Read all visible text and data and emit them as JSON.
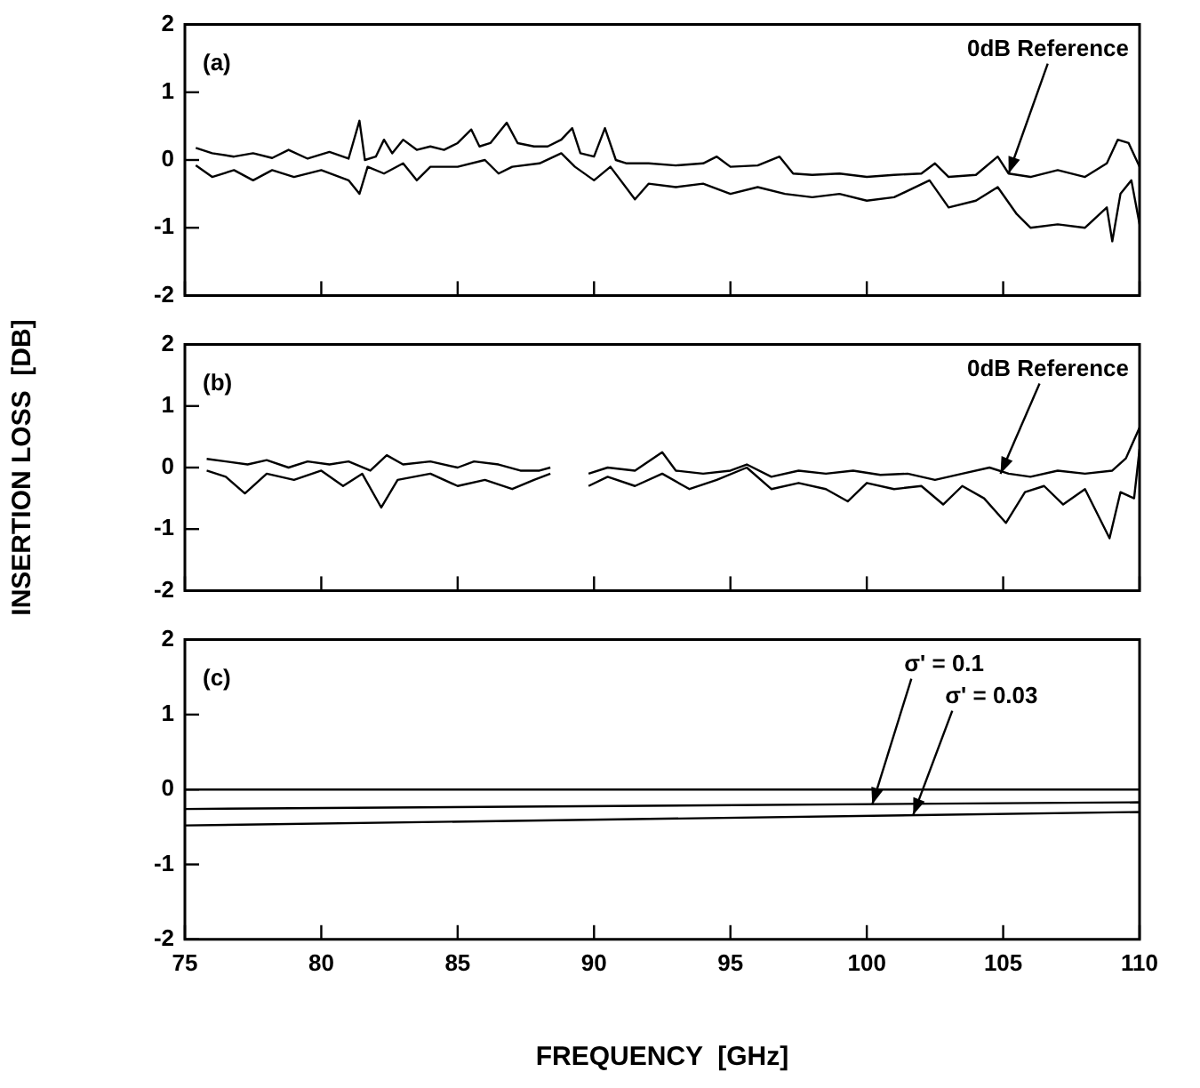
{
  "chart_data": [
    {
      "type": "line",
      "xlim": [
        75,
        110
      ],
      "xticks": [
        75,
        80,
        85,
        90,
        95,
        100,
        105,
        110
      ],
      "ylim": [
        -2,
        2
      ],
      "yticks": [
        -2,
        -1,
        0,
        1,
        2
      ],
      "tick_labels": "y",
      "marker": "none",
      "line_style": "solid",
      "grid": false,
      "legend": false,
      "annotations": [
        "(a)",
        {
          "text": "0dB Reference",
          "x": 105.2,
          "y": -0.2
        }
      ],
      "series": [
        {
          "color": "#000000",
          "x": [
            75.4,
            76,
            76.8,
            77.5,
            78.2,
            78.8,
            79.5,
            80.3,
            81,
            81.4,
            81.6,
            82,
            82.3,
            82.6,
            83,
            83.5,
            84,
            84.5,
            85,
            85.5,
            85.8,
            86.2,
            86.8,
            87.2,
            87.8,
            88.3,
            88.8,
            89.2,
            89.5,
            90,
            90.4,
            90.8,
            91.2,
            92,
            93,
            94,
            94.5,
            95,
            96,
            96.8,
            97.3,
            98,
            99,
            100,
            101,
            102,
            102.5,
            103,
            104,
            104.8,
            105.2,
            106,
            107,
            108,
            108.8,
            109.2,
            109.6,
            110
          ],
          "values": [
            0.18,
            0.1,
            0.05,
            0.1,
            0.03,
            0.15,
            0.02,
            0.12,
            0.02,
            0.58,
            0.0,
            0.05,
            0.3,
            0.1,
            0.3,
            0.15,
            0.2,
            0.15,
            0.25,
            0.45,
            0.2,
            0.25,
            0.55,
            0.25,
            0.2,
            0.2,
            0.3,
            0.47,
            0.1,
            0.05,
            0.47,
            0.0,
            -0.05,
            -0.05,
            -0.08,
            -0.05,
            0.05,
            -0.1,
            -0.08,
            0.05,
            -0.2,
            -0.22,
            -0.2,
            -0.25,
            -0.22,
            -0.2,
            -0.05,
            -0.25,
            -0.22,
            0.05,
            -0.2,
            -0.25,
            -0.15,
            -0.25,
            -0.05,
            0.3,
            0.25,
            -0.1
          ]
        },
        {
          "color": "#000000",
          "x": [
            75.4,
            76,
            76.8,
            77.5,
            78.2,
            79,
            80,
            81,
            81.4,
            81.7,
            82.3,
            83,
            83.5,
            84,
            85,
            86,
            86.5,
            87,
            88,
            88.8,
            89.3,
            90,
            90.6,
            91.5,
            92,
            93,
            94,
            95,
            96,
            97,
            98,
            99,
            100,
            101,
            102.3,
            103,
            104,
            104.8,
            105.5,
            106,
            107,
            108,
            108.8,
            109,
            109.3,
            109.7,
            110
          ],
          "values": [
            -0.08,
            -0.25,
            -0.15,
            -0.3,
            -0.15,
            -0.25,
            -0.15,
            -0.3,
            -0.5,
            -0.1,
            -0.2,
            -0.05,
            -0.3,
            -0.1,
            -0.1,
            0.0,
            -0.2,
            -0.1,
            -0.05,
            0.1,
            -0.1,
            -0.3,
            -0.1,
            -0.58,
            -0.35,
            -0.4,
            -0.35,
            -0.5,
            -0.4,
            -0.5,
            -0.55,
            -0.5,
            -0.6,
            -0.55,
            -0.3,
            -0.7,
            -0.6,
            -0.4,
            -0.8,
            -1.0,
            -0.95,
            -1.0,
            -0.7,
            -1.2,
            -0.5,
            -0.3,
            -0.95
          ]
        }
      ]
    },
    {
      "type": "line",
      "xlim": [
        75,
        110
      ],
      "xticks": [
        75,
        80,
        85,
        90,
        95,
        100,
        105,
        110
      ],
      "ylim": [
        -2,
        2
      ],
      "yticks": [
        -2,
        -1,
        0,
        1,
        2
      ],
      "tick_labels": "y",
      "marker": "none",
      "line_style": "solid",
      "grid": false,
      "legend": false,
      "ylabel": "INSERTION LOSS  [DB]",
      "annotations": [
        "(b)",
        {
          "text": "0dB Reference",
          "x": 104.9,
          "y": -0.1
        }
      ],
      "series": [
        {
          "color": "#000000",
          "x": [
            75.8,
            76.5,
            77.3,
            78,
            78.8,
            79.5,
            80.3,
            81,
            81.8,
            82.4,
            83,
            84,
            85,
            85.6,
            86.5,
            87.3,
            88,
            88.4,
            89.1,
            89.8,
            90.5,
            91.5,
            92.5,
            93,
            94,
            95,
            95.6,
            96.5,
            97.5,
            98.5,
            99.5,
            100.5,
            101.5,
            102.5,
            103.5,
            104.5,
            105.2,
            106,
            107,
            108,
            109,
            109.5,
            110
          ],
          "values": [
            0.14,
            0.1,
            0.05,
            0.12,
            0.0,
            0.1,
            0.05,
            0.1,
            -0.05,
            0.2,
            0.05,
            0.1,
            0.0,
            0.1,
            0.05,
            -0.05,
            -0.05,
            0.0,
            null,
            -0.1,
            0.0,
            -0.05,
            0.25,
            -0.05,
            -0.1,
            -0.05,
            0.05,
            -0.15,
            -0.05,
            -0.1,
            -0.05,
            -0.12,
            -0.1,
            -0.2,
            -0.1,
            0.0,
            -0.1,
            -0.15,
            -0.05,
            -0.1,
            -0.05,
            0.15,
            0.65
          ]
        },
        {
          "color": "#000000",
          "x": [
            75.8,
            76.5,
            77.2,
            78,
            79,
            80,
            80.8,
            81.5,
            82.2,
            82.8,
            84,
            85,
            86,
            87,
            87.8,
            88.4,
            89.1,
            89.8,
            90.5,
            91.5,
            92.5,
            93.5,
            94.5,
            95.6,
            96.5,
            97.5,
            98.5,
            99.3,
            100,
            101,
            102,
            102.8,
            103.5,
            104.3,
            105.1,
            105.8,
            106.5,
            107.2,
            108,
            108.9,
            109.3,
            109.8,
            110
          ],
          "values": [
            -0.05,
            -0.15,
            -0.42,
            -0.1,
            -0.2,
            -0.05,
            -0.3,
            -0.1,
            -0.65,
            -0.2,
            -0.1,
            -0.3,
            -0.2,
            -0.35,
            -0.2,
            -0.1,
            null,
            -0.3,
            -0.15,
            -0.3,
            -0.1,
            -0.35,
            -0.2,
            0.0,
            -0.35,
            -0.25,
            -0.35,
            -0.55,
            -0.25,
            -0.35,
            -0.3,
            -0.6,
            -0.3,
            -0.5,
            -0.9,
            -0.4,
            -0.3,
            -0.6,
            -0.35,
            -1.15,
            -0.4,
            -0.5,
            0.3
          ]
        }
      ]
    },
    {
      "type": "line",
      "xlim": [
        75,
        110
      ],
      "xticks": [
        75,
        80,
        85,
        90,
        95,
        100,
        105,
        110
      ],
      "ylim": [
        -2,
        2
      ],
      "yticks": [
        -2,
        -1,
        0,
        1,
        2
      ],
      "marker": "none",
      "line_style": "solid",
      "grid": false,
      "legend": false,
      "xlabel": "FREQUENCY  [GHz]",
      "annotations": [
        "(c)",
        {
          "text": "σ' = 0.1",
          "x": 100.2,
          "y": -0.2
        },
        {
          "text": "σ' = 0.03",
          "x": 101.7,
          "y": -0.34
        }
      ],
      "series": [
        {
          "color": "#000000",
          "x": [
            75,
            110
          ],
          "values": [
            0,
            0
          ]
        },
        {
          "color": "#000000",
          "x": [
            75,
            110
          ],
          "values": [
            -0.26,
            -0.17
          ]
        },
        {
          "color": "#000000",
          "x": [
            75,
            110
          ],
          "values": [
            -0.48,
            -0.3
          ]
        }
      ]
    }
  ]
}
